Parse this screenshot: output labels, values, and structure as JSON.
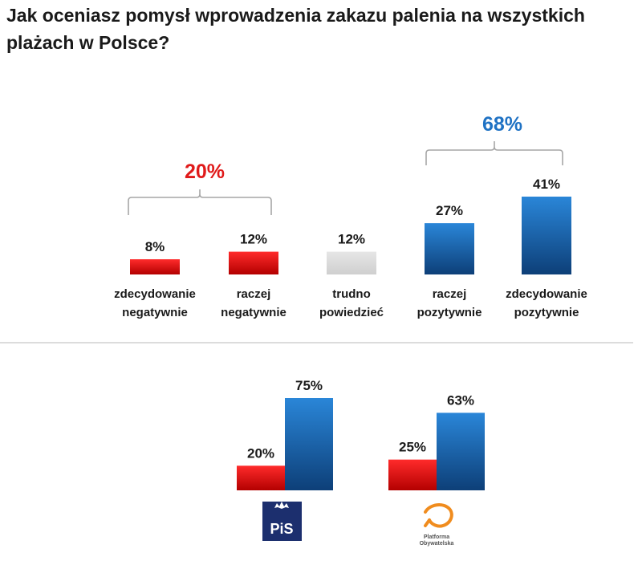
{
  "title_lines": [
    "Jak oceniasz pomysł wprowadzenia zakazu palenia na wszystkich",
    "plażach w Polsce?"
  ],
  "colors": {
    "negative": "#e01a1a",
    "neutral": "#d9d9d9",
    "positive": "#1f72c4",
    "negative_label": "#e01a1a",
    "positive_label": "#1f72c4"
  },
  "groups": {
    "negative_total": "20%",
    "positive_total": "68%"
  },
  "parties": {
    "pis_logo_text": "PiS",
    "po_logo_line1": "Platforma",
    "po_logo_line2": "Obywatelska"
  },
  "chart_data": [
    {
      "type": "bar",
      "categories": [
        [
          "zdecydowanie",
          "negatywnie"
        ],
        [
          "raczej",
          "negatywnie"
        ],
        [
          "trudno",
          "powiedzieć"
        ],
        [
          "raczej",
          "pozytywnie"
        ],
        [
          "zdecydowanie",
          "pozytywnie"
        ]
      ],
      "values": [
        8,
        12,
        12,
        27,
        41
      ],
      "value_labels": [
        "8%",
        "12%",
        "12%",
        "27%",
        "41%"
      ],
      "bar_colors": [
        "negative",
        "negative",
        "neutral",
        "positive",
        "positive"
      ]
    },
    {
      "type": "bar",
      "categories": [
        "PiS",
        "Platforma Obywatelska"
      ],
      "series": [
        {
          "color": "negative",
          "values": [
            20,
            25
          ],
          "value_labels": [
            "20%",
            "25%"
          ]
        },
        {
          "color": "positive",
          "values": [
            75,
            63
          ],
          "value_labels": [
            "75%",
            "63%"
          ]
        }
      ]
    }
  ]
}
